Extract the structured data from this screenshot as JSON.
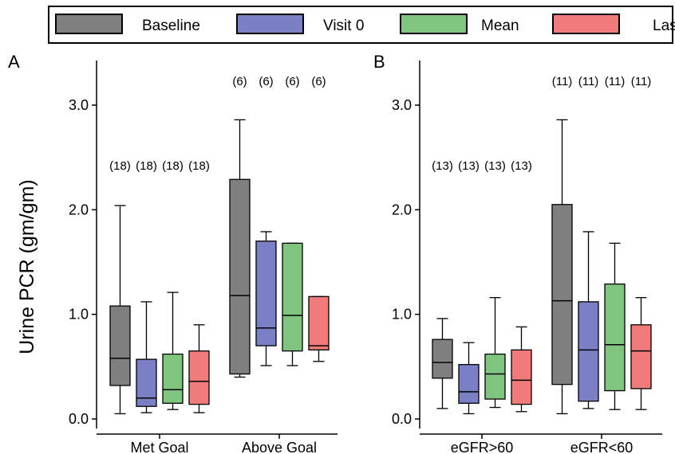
{
  "legend": [
    {
      "name": "Baseline",
      "color": "#7f7f7f"
    },
    {
      "name": "Visit 0",
      "color": "#7b7fc4"
    },
    {
      "name": "Mean",
      "color": "#7fc47f"
    },
    {
      "name": "Last",
      "color": "#f07b7b"
    }
  ],
  "chart_data": {
    "type": "box",
    "ylabel": "Urine PCR (gm/gm)",
    "ylim": [
      -0.1,
      3.45
    ],
    "yticks": [
      "0.0",
      "1.0",
      "2.0",
      "3.0"
    ],
    "grid": false,
    "legend_position": "top",
    "series": [
      "Baseline",
      "Visit 0",
      "Mean",
      "Last"
    ],
    "panels": [
      {
        "letter": "A",
        "groups": [
          {
            "label": "Met Goal",
            "boxes": [
              {
                "series": "Baseline",
                "n": "(18)",
                "min": 0.05,
                "q1": 0.32,
                "median": 0.58,
                "q3": 1.08,
                "max": 2.04
              },
              {
                "series": "Visit 0",
                "n": "(18)",
                "min": 0.06,
                "q1": 0.12,
                "median": 0.2,
                "q3": 0.57,
                "max": 1.12
              },
              {
                "series": "Mean",
                "n": "(18)",
                "min": 0.09,
                "q1": 0.15,
                "median": 0.28,
                "q3": 0.62,
                "max": 1.21
              },
              {
                "series": "Last",
                "n": "(18)",
                "min": 0.06,
                "q1": 0.14,
                "median": 0.36,
                "q3": 0.65,
                "max": 0.9
              }
            ]
          },
          {
            "label": "Above Goal",
            "boxes": [
              {
                "series": "Baseline",
                "n": "(6)",
                "min": 0.4,
                "q1": 0.43,
                "median": 1.18,
                "q3": 2.29,
                "max": 2.86
              },
              {
                "series": "Visit 0",
                "n": "(6)",
                "min": 0.51,
                "q1": 0.7,
                "median": 0.87,
                "q3": 1.7,
                "max": 1.79
              },
              {
                "series": "Mean",
                "n": "(6)",
                "min": 0.51,
                "q1": 0.65,
                "median": 0.99,
                "q3": 1.68,
                "max": 1.68
              },
              {
                "series": "Last",
                "n": "(6)",
                "min": 0.55,
                "q1": 0.66,
                "median": 0.7,
                "q3": 1.17,
                "max": 1.17
              }
            ]
          }
        ]
      },
      {
        "letter": "B",
        "groups": [
          {
            "label": "eGFR>60",
            "boxes": [
              {
                "series": "Baseline",
                "n": "(13)",
                "min": 0.1,
                "q1": 0.39,
                "median": 0.54,
                "q3": 0.76,
                "max": 0.96
              },
              {
                "series": "Visit 0",
                "n": "(13)",
                "min": 0.05,
                "q1": 0.15,
                "median": 0.26,
                "q3": 0.52,
                "max": 0.73
              },
              {
                "series": "Mean",
                "n": "(13)",
                "min": 0.11,
                "q1": 0.19,
                "median": 0.43,
                "q3": 0.62,
                "max": 1.16
              },
              {
                "series": "Last",
                "n": "(13)",
                "min": 0.07,
                "q1": 0.14,
                "median": 0.37,
                "q3": 0.66,
                "max": 0.88
              }
            ]
          },
          {
            "label": "eGFR<60",
            "boxes": [
              {
                "series": "Baseline",
                "n": "(11)",
                "min": 0.05,
                "q1": 0.33,
                "median": 1.13,
                "q3": 2.05,
                "max": 2.86
              },
              {
                "series": "Visit 0",
                "n": "(11)",
                "min": 0.1,
                "q1": 0.17,
                "median": 0.66,
                "q3": 1.12,
                "max": 1.79
              },
              {
                "series": "Mean",
                "n": "(11)",
                "min": 0.09,
                "q1": 0.27,
                "median": 0.71,
                "q3": 1.29,
                "max": 1.68
              },
              {
                "series": "Last",
                "n": "(11)",
                "min": 0.09,
                "q1": 0.29,
                "median": 0.65,
                "q3": 0.9,
                "max": 1.16
              }
            ]
          }
        ]
      }
    ]
  }
}
